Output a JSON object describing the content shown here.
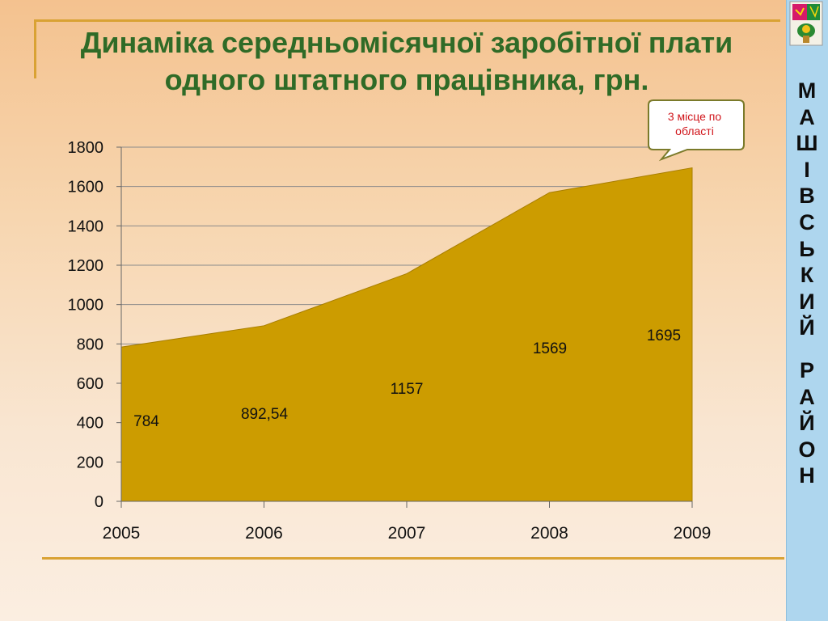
{
  "title": {
    "line1": "Динаміка середньомісячної заробітної плати",
    "line2": "одного штатного працівника, грн."
  },
  "sidebar": {
    "district_word1": [
      "М",
      "А",
      "Ш",
      "І",
      "В",
      "С",
      "Ь",
      "К",
      "И",
      "Й"
    ],
    "district_word2": [
      "Р",
      "А",
      "Й",
      "О",
      "Н"
    ],
    "emblem_icon": "district-coat-of-arms-icon",
    "background_color": "#aed6ee"
  },
  "callout": {
    "text": "3  місце по області",
    "text_color": "#d0141a",
    "border_color": "#7a7a2a"
  },
  "colors": {
    "area_fill": "#cc9c00",
    "area_stroke": "#a87e00",
    "title_color": "#2f6b27",
    "rule_color": "#d9a234"
  },
  "chart_data": {
    "type": "area",
    "title": "Динаміка середньомісячної заробітної плати одного штатного працівника, грн.",
    "categories": [
      "2005",
      "2006",
      "2007",
      "2008",
      "2009"
    ],
    "values": [
      784,
      892.54,
      1157,
      1569,
      1695
    ],
    "data_labels": [
      "784",
      "892,54",
      "1157",
      "1569",
      "1695"
    ],
    "yticks": [
      0,
      200,
      400,
      600,
      800,
      1000,
      1200,
      1400,
      1600,
      1800
    ],
    "ylim": [
      0,
      1800
    ],
    "grid": true,
    "legend": "none"
  }
}
